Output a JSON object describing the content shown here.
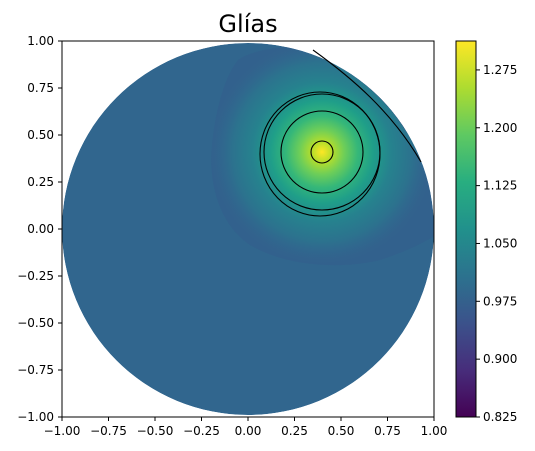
{
  "chart_data": {
    "type": "contour",
    "title": "Glías",
    "xlabel": "",
    "ylabel": "",
    "xlim": [
      -1.0,
      1.0
    ],
    "ylim": [
      -1.0,
      1.0
    ],
    "xticks": [
      "−1.00",
      "−0.75",
      "−0.50",
      "−0.25",
      "0.00",
      "0.25",
      "0.50",
      "0.75",
      "1.00"
    ],
    "yticks": [
      "−1.00",
      "−0.75",
      "−0.50",
      "−0.25",
      "0.00",
      "0.25",
      "0.50",
      "0.75",
      "1.00"
    ],
    "domain": "unit-disk",
    "peak": {
      "x": 0.4,
      "y": 0.4,
      "value": 1.31
    },
    "background_value": 1.0,
    "trough_region": "upper-right edge near (0.75, 0.85)",
    "contour_lines": [
      {
        "shape": "circle",
        "cx": 0.4,
        "cy": 0.4,
        "r": 0.06
      },
      {
        "shape": "circle",
        "cx": 0.4,
        "cy": 0.4,
        "r": 0.22
      },
      {
        "shape": "circle",
        "cx": 0.4,
        "cy": 0.4,
        "r": 0.31
      },
      {
        "shape": "ellipse",
        "cx": 0.4,
        "cy": 0.4,
        "rx": 0.32,
        "ry": 0.33
      },
      {
        "shape": "arc",
        "from": [
          0.37,
          0.96
        ],
        "to": [
          0.96,
          0.36
        ]
      }
    ],
    "colorbar": {
      "colormap": "viridis",
      "min": 0.825,
      "max": 1.3125,
      "ticks": [
        0.825,
        0.9,
        0.975,
        1.05,
        1.125,
        1.2,
        1.275
      ],
      "tick_labels": [
        "0.825",
        "0.900",
        "0.975",
        "1.050",
        "1.125",
        "1.200",
        "1.275"
      ]
    },
    "grid": false,
    "legend": "none"
  }
}
